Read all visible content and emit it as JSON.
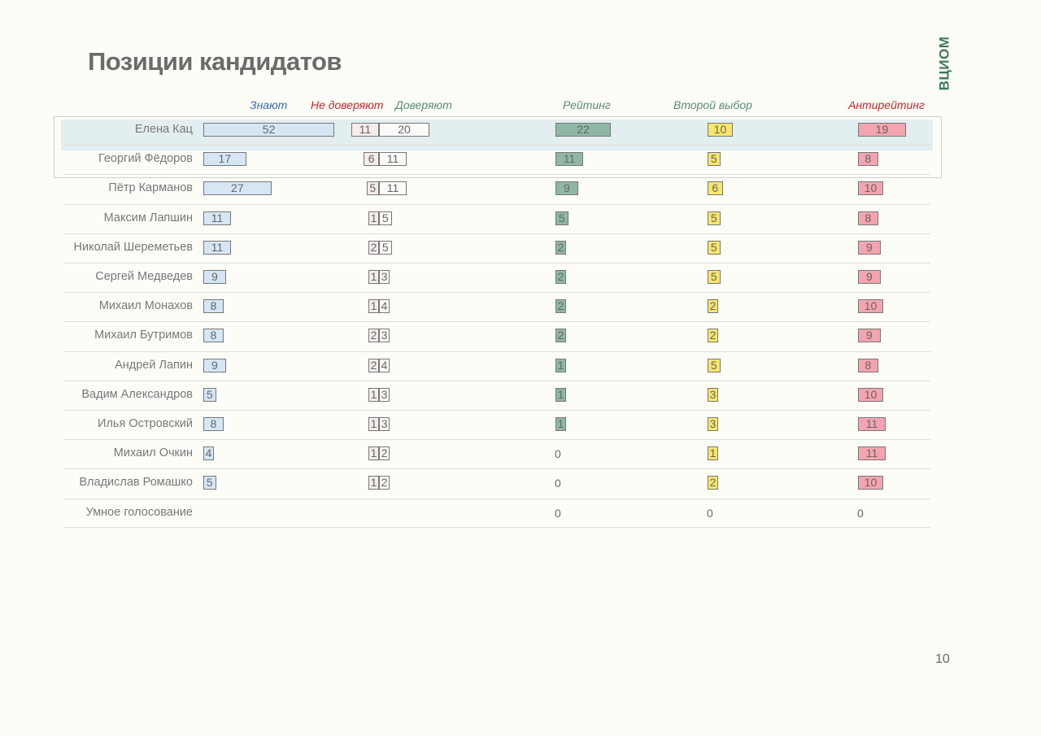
{
  "title": "Позиции кандидатов",
  "logo": "ВЦИОМ",
  "page_number": "10",
  "colors": {
    "know": "#d6e6f5",
    "distrust": "#f6ece9",
    "trust": "#fbfbf8",
    "rating": "#8fb8a4",
    "second": "#f8e66a",
    "anti": "#f3a4b0",
    "hdr_blue": "#3a66a8",
    "hdr_red": "#c0282d",
    "hdr_green": "#5a8a76"
  },
  "chart_data": {
    "type": "table",
    "title": "Позиции кандидатов",
    "columns": [
      "Знают",
      "Не доверяют",
      "Доверяют",
      "Рейтинг",
      "Второй выбор",
      "Антирейтинг"
    ],
    "highlighted_rows": [
      "Елена Кац",
      "Георгий Фёдоров"
    ],
    "rows": [
      {
        "name": "Елена Кац",
        "know": 52,
        "distrust": 11,
        "trust": 20,
        "rating": 22,
        "second": 10,
        "anti": 19
      },
      {
        "name": "Георгий Фёдоров",
        "know": 17,
        "distrust": 6,
        "trust": 11,
        "rating": 11,
        "second": 5,
        "anti": 8
      },
      {
        "name": "Пётр Карманов",
        "know": 27,
        "distrust": 5,
        "trust": 11,
        "rating": 9,
        "second": 6,
        "anti": 10
      },
      {
        "name": "Максим Лапшин",
        "know": 11,
        "distrust": 1,
        "trust": 5,
        "rating": 5,
        "second": 5,
        "anti": 8
      },
      {
        "name": "Николай Шереметьев",
        "know": 11,
        "distrust": 2,
        "trust": 5,
        "rating": 2,
        "second": 5,
        "anti": 9
      },
      {
        "name": "Сергей Медведев",
        "know": 9,
        "distrust": 1,
        "trust": 3,
        "rating": 2,
        "second": 5,
        "anti": 9
      },
      {
        "name": "Михаил Монахов",
        "know": 8,
        "distrust": 1,
        "trust": 4,
        "rating": 2,
        "second": 2,
        "anti": 10
      },
      {
        "name": "Михаил Бутримов",
        "know": 8,
        "distrust": 2,
        "trust": 3,
        "rating": 2,
        "second": 2,
        "anti": 9
      },
      {
        "name": "Андрей Лапин",
        "know": 9,
        "distrust": 2,
        "trust": 4,
        "rating": 1,
        "second": 5,
        "anti": 8
      },
      {
        "name": "Вадим Александров",
        "know": 5,
        "distrust": 1,
        "trust": 3,
        "rating": 1,
        "second": 3,
        "anti": 10
      },
      {
        "name": "Илья Островский",
        "know": 8,
        "distrust": 1,
        "trust": 3,
        "rating": 1,
        "second": 3,
        "anti": 11
      },
      {
        "name": "Михаил Очкин",
        "know": 4,
        "distrust": 1,
        "trust": 2,
        "rating": 0,
        "second": 1,
        "anti": 11
      },
      {
        "name": "Владислав Ромашко",
        "know": 5,
        "distrust": 1,
        "trust": 2,
        "rating": 0,
        "second": 2,
        "anti": 10
      },
      {
        "name": "Умное голосование",
        "know": null,
        "distrust": null,
        "trust": null,
        "rating": 0,
        "second": 0,
        "anti": 0
      }
    ]
  }
}
